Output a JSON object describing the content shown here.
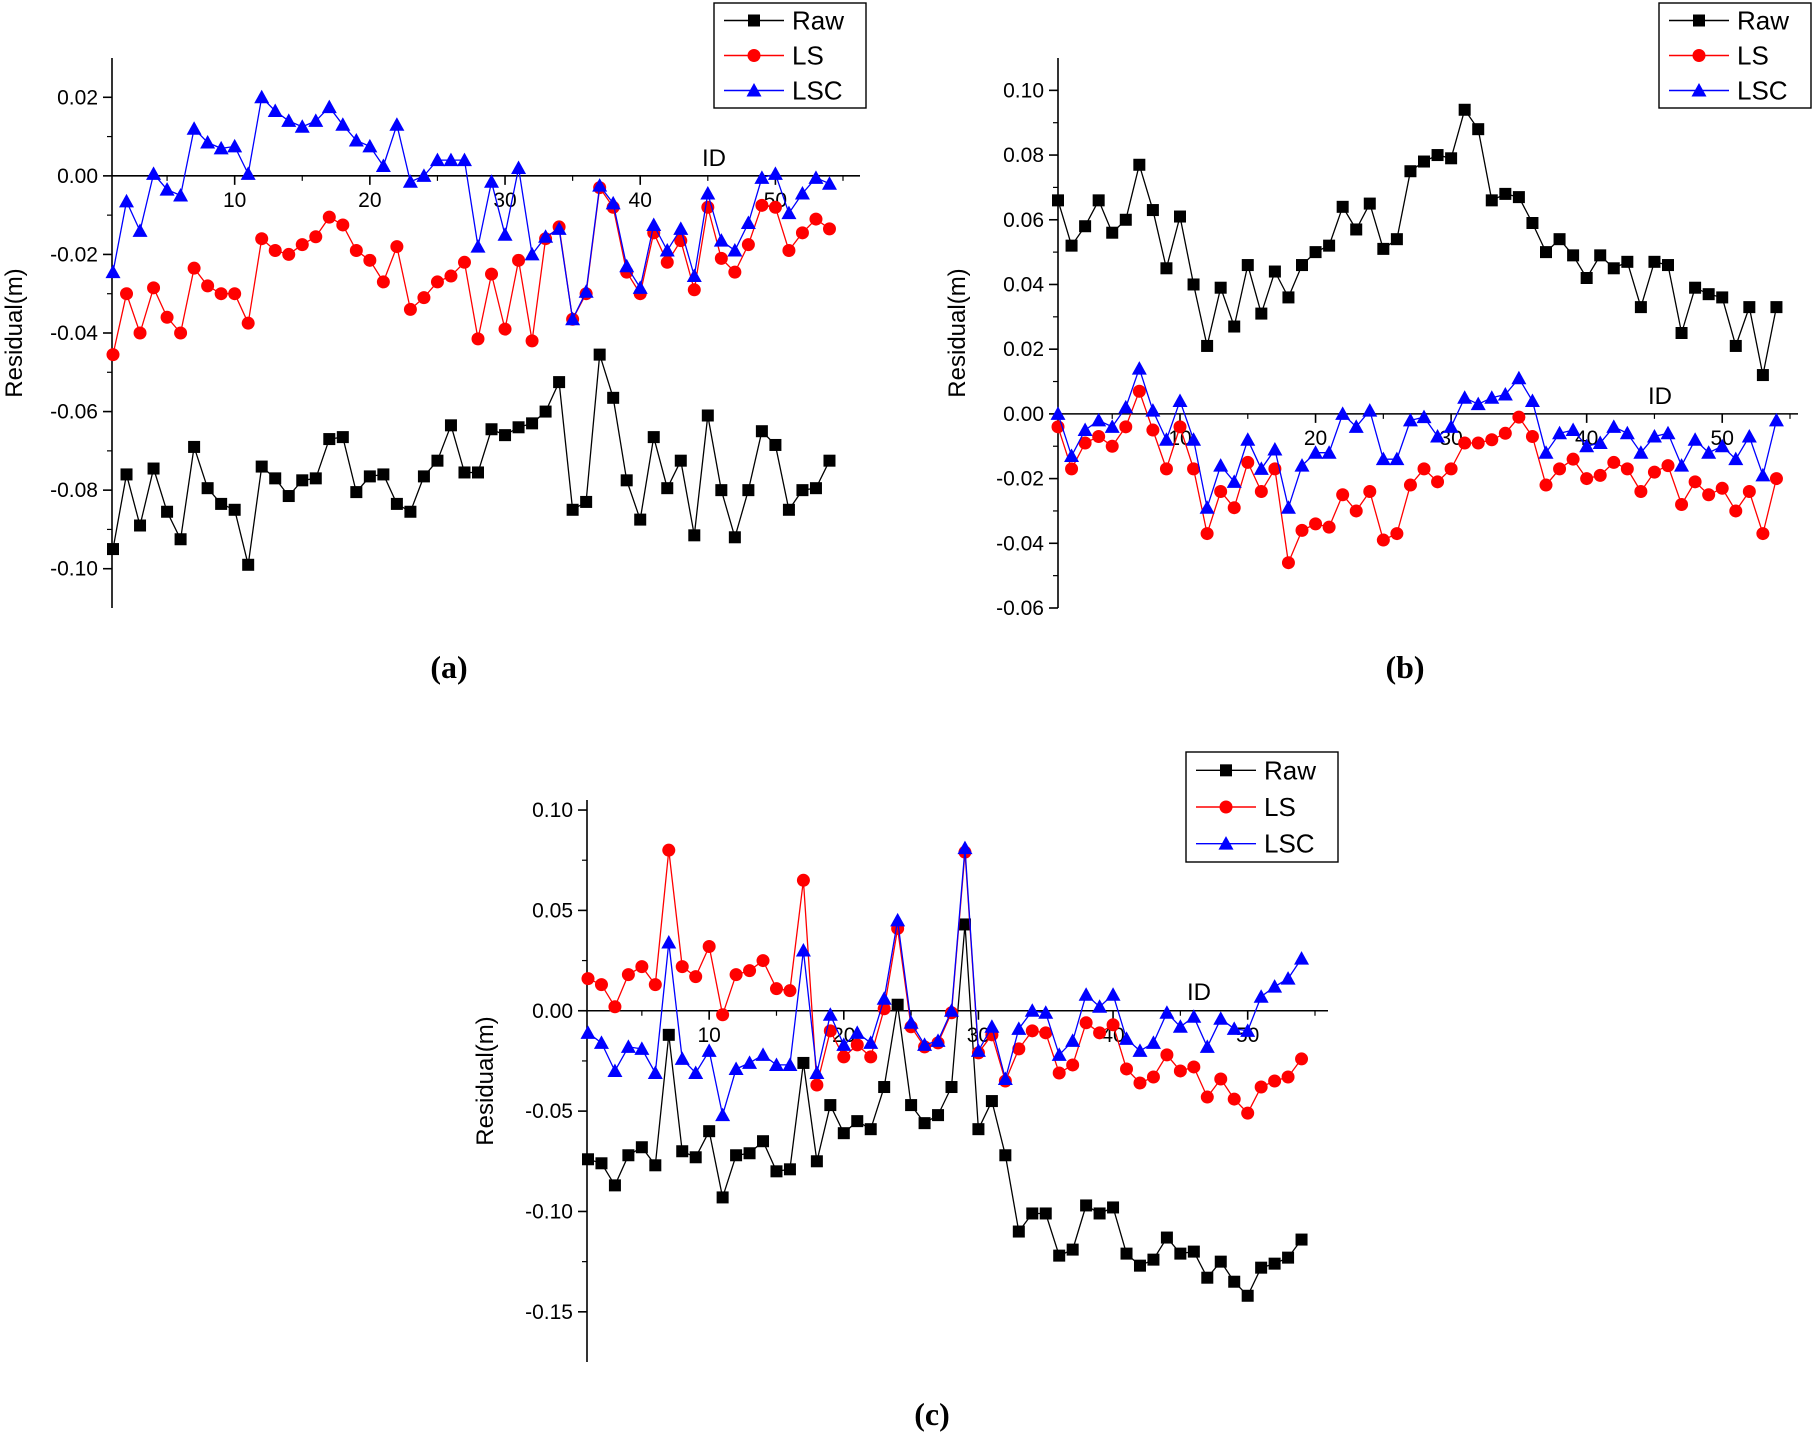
{
  "chart_data": [
    {
      "panel": "a",
      "type": "line",
      "caption": "(a)",
      "xlabel": "ID",
      "ylabel": "Residual(m)",
      "xlim": [
        1,
        55
      ],
      "ylim": [
        -0.11,
        0.03
      ],
      "yticks": [
        -0.1,
        -0.08,
        -0.06,
        -0.04,
        -0.02,
        0.0,
        0.02
      ],
      "ytick_labels": [
        "-0.10",
        "-0.08",
        "-0.06",
        "-0.04",
        "-0.02",
        "0.00",
        "0.02"
      ],
      "xticks": [
        10,
        20,
        30,
        40,
        50
      ],
      "xtick_labels": [
        "10",
        "20",
        "30",
        "40",
        "50"
      ],
      "legend": [
        "Raw",
        "LS",
        "LSC"
      ],
      "series": [
        {
          "name": "Raw",
          "color": "#000000",
          "marker": "square",
          "values": [
            -0.095,
            -0.076,
            -0.089,
            -0.0745,
            -0.0855,
            -0.0925,
            -0.069,
            -0.0795,
            -0.0835,
            -0.085,
            -0.099,
            -0.074,
            -0.077,
            -0.0815,
            -0.0775,
            -0.077,
            -0.067,
            -0.0665,
            -0.0805,
            -0.0765,
            -0.076,
            -0.0835,
            -0.0855,
            -0.0765,
            -0.0725,
            -0.0635,
            -0.0755,
            -0.0755,
            -0.0645,
            -0.066,
            -0.064,
            -0.063,
            -0.06,
            -0.0525,
            -0.085,
            -0.083,
            -0.0455,
            -0.0565,
            -0.0775,
            -0.0875,
            -0.0665,
            -0.0795,
            -0.0725,
            -0.0915,
            -0.061,
            -0.08,
            -0.092,
            -0.08,
            -0.065,
            -0.0685,
            -0.085,
            -0.08,
            -0.0795,
            -0.0725
          ]
        },
        {
          "name": "LS",
          "color": "#ff0000",
          "marker": "circle",
          "values": [
            -0.0455,
            -0.03,
            -0.04,
            -0.0285,
            -0.036,
            -0.04,
            -0.0235,
            -0.028,
            -0.03,
            -0.03,
            -0.0375,
            -0.016,
            -0.019,
            -0.02,
            -0.0175,
            -0.0155,
            -0.0105,
            -0.0125,
            -0.019,
            -0.0215,
            -0.027,
            -0.018,
            -0.034,
            -0.031,
            -0.027,
            -0.0255,
            -0.022,
            -0.0415,
            -0.025,
            -0.039,
            -0.0215,
            -0.042,
            -0.016,
            -0.013,
            -0.0365,
            -0.03,
            -0.003,
            -0.008,
            -0.0245,
            -0.03,
            -0.0145,
            -0.022,
            -0.0165,
            -0.029,
            -0.008,
            -0.021,
            -0.0245,
            -0.0175,
            -0.0075,
            -0.008,
            -0.019,
            -0.0145,
            -0.011,
            -0.0135
          ]
        },
        {
          "name": "LSC",
          "color": "#0000ff",
          "marker": "triangle",
          "values": [
            -0.0245,
            -0.0065,
            -0.014,
            0.0005,
            -0.0035,
            -0.005,
            0.012,
            0.0085,
            0.007,
            0.0075,
            0.0005,
            0.02,
            0.0165,
            0.014,
            0.0125,
            0.014,
            0.0175,
            0.013,
            0.009,
            0.0075,
            0.0025,
            0.013,
            -0.0015,
            0.0,
            0.004,
            0.004,
            0.004,
            -0.018,
            -0.0015,
            -0.015,
            0.002,
            -0.02,
            -0.0155,
            -0.0135,
            -0.0365,
            -0.0295,
            -0.0025,
            -0.007,
            -0.023,
            -0.0285,
            -0.0125,
            -0.019,
            -0.0135,
            -0.0255,
            -0.0045,
            -0.0165,
            -0.019,
            -0.012,
            -0.0005,
            0.0005,
            -0.0095,
            -0.0045,
            -0.0005,
            -0.002
          ]
        }
      ]
    },
    {
      "panel": "b",
      "type": "line",
      "caption": "(b)",
      "xlabel": "ID",
      "ylabel": "Residual(m)",
      "xlim": [
        1,
        55
      ],
      "ylim": [
        -0.06,
        0.11
      ],
      "yticks": [
        -0.06,
        -0.04,
        -0.02,
        0.0,
        0.02,
        0.04,
        0.06,
        0.08,
        0.1
      ],
      "ytick_labels": [
        "-0.06",
        "-0.04",
        "-0.02",
        "0.00",
        "0.02",
        "0.04",
        "0.06",
        "0.08",
        "0.10"
      ],
      "xticks": [
        10,
        20,
        30,
        40,
        50
      ],
      "xtick_labels": [
        "10",
        "20",
        "30",
        "40",
        "50"
      ],
      "legend": [
        "Raw",
        "LS",
        "LSC"
      ],
      "series": [
        {
          "name": "Raw",
          "color": "#000000",
          "marker": "square",
          "values": [
            0.066,
            0.052,
            0.058,
            0.066,
            0.056,
            0.06,
            0.077,
            0.063,
            0.045,
            0.061,
            0.04,
            0.021,
            0.039,
            0.027,
            0.046,
            0.031,
            0.044,
            0.036,
            0.046,
            0.05,
            0.052,
            0.064,
            0.057,
            0.065,
            0.051,
            0.054,
            0.075,
            0.078,
            0.08,
            0.079,
            0.094,
            0.088,
            0.066,
            0.068,
            0.067,
            0.059,
            0.05,
            0.054,
            0.049,
            0.042,
            0.049,
            0.045,
            0.047,
            0.033,
            0.047,
            0.046,
            0.025,
            0.039,
            0.037,
            0.036,
            0.021,
            0.033,
            0.012,
            0.033
          ]
        },
        {
          "name": "LS",
          "color": "#ff0000",
          "marker": "circle",
          "values": [
            -0.004,
            -0.017,
            -0.009,
            -0.007,
            -0.01,
            -0.004,
            0.007,
            -0.005,
            -0.017,
            -0.004,
            -0.017,
            -0.037,
            -0.024,
            -0.029,
            -0.015,
            -0.024,
            -0.017,
            -0.046,
            -0.036,
            -0.034,
            -0.035,
            -0.025,
            -0.03,
            -0.024,
            -0.039,
            -0.037,
            -0.022,
            -0.017,
            -0.021,
            -0.017,
            -0.009,
            -0.009,
            -0.008,
            -0.006,
            -0.001,
            -0.007,
            -0.022,
            -0.017,
            -0.014,
            -0.02,
            -0.019,
            -0.015,
            -0.017,
            -0.024,
            -0.018,
            -0.016,
            -0.028,
            -0.021,
            -0.025,
            -0.023,
            -0.03,
            -0.024,
            -0.037,
            -0.02
          ]
        },
        {
          "name": "LSC",
          "color": "#0000ff",
          "marker": "triangle",
          "values": [
            0.0,
            -0.013,
            -0.005,
            -0.002,
            -0.004,
            0.002,
            0.014,
            0.001,
            -0.008,
            0.004,
            -0.008,
            -0.029,
            -0.016,
            -0.021,
            -0.008,
            -0.017,
            -0.011,
            -0.029,
            -0.016,
            -0.012,
            -0.012,
            0.0,
            -0.004,
            0.001,
            -0.014,
            -0.014,
            -0.002,
            -0.001,
            -0.007,
            -0.004,
            0.005,
            0.003,
            0.005,
            0.006,
            0.011,
            0.004,
            -0.012,
            -0.006,
            -0.005,
            -0.01,
            -0.009,
            -0.004,
            -0.006,
            -0.012,
            -0.007,
            -0.006,
            -0.016,
            -0.008,
            -0.012,
            -0.01,
            -0.014,
            -0.007,
            -0.019,
            -0.002
          ]
        }
      ]
    },
    {
      "panel": "c",
      "type": "line",
      "caption": "(c)",
      "xlabel": "ID",
      "ylabel": "Residual(m)",
      "xlim": [
        1,
        55
      ],
      "ylim": [
        -0.175,
        0.105
      ],
      "yticks": [
        -0.15,
        -0.1,
        -0.05,
        0.0,
        0.05,
        0.1
      ],
      "ytick_labels": [
        "-0.15",
        "-0.10",
        "-0.05",
        "0.00",
        "0.05",
        "0.10"
      ],
      "xticks": [
        10,
        20,
        30,
        40,
        50
      ],
      "xtick_labels": [
        "10",
        "20",
        "30",
        "40",
        "50"
      ],
      "legend": [
        "Raw",
        "LS",
        "LSC"
      ],
      "series": [
        {
          "name": "Raw",
          "color": "#000000",
          "marker": "square",
          "values": [
            -0.074,
            -0.076,
            -0.087,
            -0.072,
            -0.068,
            -0.077,
            -0.012,
            -0.07,
            -0.073,
            -0.06,
            -0.093,
            -0.072,
            -0.071,
            -0.065,
            -0.08,
            -0.079,
            -0.026,
            -0.075,
            -0.047,
            -0.061,
            -0.055,
            -0.059,
            -0.038,
            0.003,
            -0.047,
            -0.056,
            -0.052,
            -0.038,
            0.043,
            -0.059,
            -0.045,
            -0.072,
            -0.11,
            -0.101,
            -0.101,
            -0.122,
            -0.119,
            -0.097,
            -0.101,
            -0.098,
            -0.121,
            -0.127,
            -0.124,
            -0.113,
            -0.121,
            -0.12,
            -0.133,
            -0.125,
            -0.135,
            -0.142,
            -0.128,
            -0.126,
            -0.123,
            -0.114
          ]
        },
        {
          "name": "LS",
          "color": "#ff0000",
          "marker": "circle",
          "values": [
            0.016,
            0.013,
            0.002,
            0.018,
            0.022,
            0.013,
            0.08,
            0.022,
            0.017,
            0.032,
            -0.002,
            0.018,
            0.02,
            0.025,
            0.011,
            0.01,
            0.065,
            -0.037,
            -0.01,
            -0.023,
            -0.017,
            -0.023,
            0.001,
            0.041,
            -0.008,
            -0.018,
            -0.016,
            -0.001,
            0.079,
            -0.021,
            -0.012,
            -0.035,
            -0.019,
            -0.01,
            -0.011,
            -0.031,
            -0.027,
            -0.006,
            -0.011,
            -0.007,
            -0.029,
            -0.036,
            -0.033,
            -0.022,
            -0.03,
            -0.028,
            -0.043,
            -0.034,
            -0.044,
            -0.051,
            -0.038,
            -0.035,
            -0.033,
            -0.024
          ]
        },
        {
          "name": "LSC",
          "color": "#0000ff",
          "marker": "triangle",
          "values": [
            -0.011,
            -0.016,
            -0.03,
            -0.018,
            -0.019,
            -0.031,
            0.034,
            -0.024,
            -0.031,
            -0.02,
            -0.052,
            -0.029,
            -0.026,
            -0.022,
            -0.027,
            -0.027,
            0.03,
            -0.031,
            -0.002,
            -0.017,
            -0.011,
            -0.016,
            0.006,
            0.045,
            -0.006,
            -0.017,
            -0.015,
            0.0,
            0.081,
            -0.02,
            -0.008,
            -0.034,
            -0.009,
            0.0,
            -0.001,
            -0.022,
            -0.015,
            0.008,
            0.002,
            0.008,
            -0.014,
            -0.02,
            -0.016,
            -0.001,
            -0.008,
            -0.003,
            -0.018,
            -0.004,
            -0.009,
            -0.01,
            0.007,
            0.012,
            0.016,
            0.026
          ]
        }
      ]
    }
  ]
}
